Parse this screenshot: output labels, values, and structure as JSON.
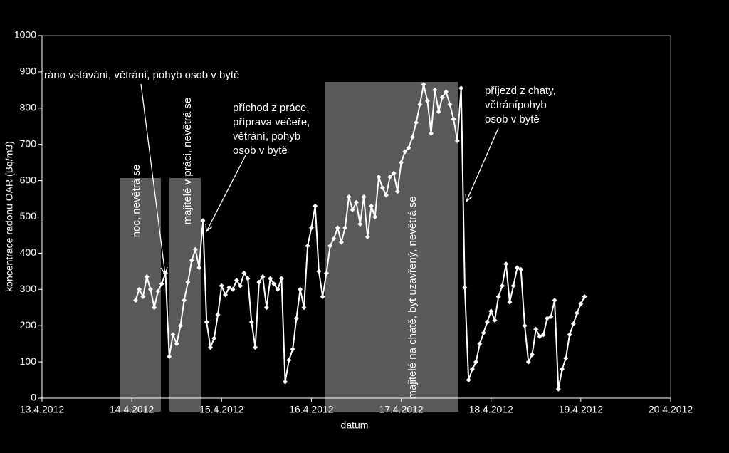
{
  "chart_data": {
    "type": "line",
    "xlabel": "datum",
    "ylabel": "koncentrace radonu OAR (Bq/m3)",
    "color": "#ffffff",
    "xlim": [
      41012,
      41019
    ],
    "xticks": [
      {
        "value": 41012,
        "label": "13.4.2012"
      },
      {
        "value": 41013,
        "label": "14.4.2012"
      },
      {
        "value": 41014,
        "label": "15.4.2012"
      },
      {
        "value": 41015,
        "label": "16.4.2012"
      },
      {
        "value": 41016,
        "label": "17.4.2012"
      },
      {
        "value": 41017,
        "label": "18.4.2012"
      },
      {
        "value": 41018,
        "label": "19.4.2012"
      },
      {
        "value": 41019,
        "label": "20.4.2012"
      }
    ],
    "ylim": [
      0,
      1000
    ],
    "yticks": [
      0,
      100,
      200,
      300,
      400,
      500,
      600,
      700,
      800,
      900,
      1000
    ],
    "x": [
      41013.042,
      41013.083,
      41013.125,
      41013.167,
      41013.208,
      41013.25,
      41013.292,
      41013.333,
      41013.375,
      41013.417,
      41013.458,
      41013.5,
      41013.542,
      41013.583,
      41013.625,
      41013.667,
      41013.708,
      41013.75,
      41013.792,
      41013.833,
      41013.875,
      41013.917,
      41013.958,
      41014,
      41014.042,
      41014.083,
      41014.125,
      41014.167,
      41014.208,
      41014.25,
      41014.292,
      41014.333,
      41014.375,
      41014.417,
      41014.458,
      41014.5,
      41014.542,
      41014.583,
      41014.625,
      41014.667,
      41014.708,
      41014.75,
      41014.792,
      41014.833,
      41014.875,
      41014.917,
      41014.958,
      41015,
      41015.042,
      41015.083,
      41015.125,
      41015.167,
      41015.208,
      41015.25,
      41015.292,
      41015.333,
      41015.375,
      41015.417,
      41015.458,
      41015.5,
      41015.542,
      41015.583,
      41015.625,
      41015.667,
      41015.708,
      41015.75,
      41015.792,
      41015.833,
      41015.875,
      41015.917,
      41015.958,
      41016,
      41016.042,
      41016.083,
      41016.125,
      41016.167,
      41016.208,
      41016.25,
      41016.292,
      41016.333,
      41016.375,
      41016.417,
      41016.458,
      41016.5,
      41016.542,
      41016.583,
      41016.625,
      41016.667,
      41016.708,
      41016.75,
      41016.792,
      41016.833,
      41016.875,
      41016.917,
      41016.958,
      41017,
      41017.042,
      41017.083,
      41017.125,
      41017.167,
      41017.208,
      41017.25,
      41017.292,
      41017.333,
      41017.375,
      41017.417,
      41017.458,
      41017.5,
      41017.542,
      41017.583,
      41017.625,
      41017.667,
      41017.708,
      41017.75,
      41017.792,
      41017.833,
      41017.875,
      41017.917,
      41017.958,
      41018,
      41018.042
    ],
    "values": [
      270,
      300,
      280,
      335,
      300,
      250,
      295,
      315,
      345,
      115,
      175,
      150,
      200,
      270,
      320,
      380,
      410,
      360,
      490,
      210,
      140,
      165,
      230,
      310,
      285,
      305,
      300,
      325,
      310,
      345,
      330,
      210,
      140,
      320,
      335,
      250,
      330,
      315,
      300,
      330,
      45,
      105,
      135,
      220,
      300,
      250,
      420,
      470,
      530,
      350,
      280,
      345,
      420,
      440,
      470,
      430,
      470,
      555,
      520,
      540,
      480,
      555,
      445,
      530,
      500,
      610,
      580,
      560,
      610,
      620,
      570,
      650,
      680,
      690,
      720,
      760,
      810,
      865,
      820,
      730,
      850,
      790,
      830,
      845,
      810,
      770,
      710,
      855,
      305,
      50,
      80,
      100,
      150,
      180,
      210,
      240,
      215,
      280,
      310,
      370,
      265,
      310,
      360,
      355,
      200,
      100,
      120,
      190,
      170,
      175,
      220,
      225,
      270,
      25,
      80,
      110,
      175,
      205,
      235,
      260,
      280
    ],
    "annotations": [
      [
        "ráno vstávání, větrání, pohyb osob v bytě"
      ],
      [
        "noc, nevětrá se"
      ],
      [
        "majitelé v práci, nevětrá se"
      ],
      [
        "příchod z práce,",
        "příprava večeře,",
        "větrání, pohyb",
        "osob v bytě"
      ],
      [
        "majitelé na chatě, byt uzavřený, nevětrá se"
      ],
      [
        "příjezd z chaty,",
        "větránípohyb",
        "osob v bytě"
      ]
    ]
  }
}
